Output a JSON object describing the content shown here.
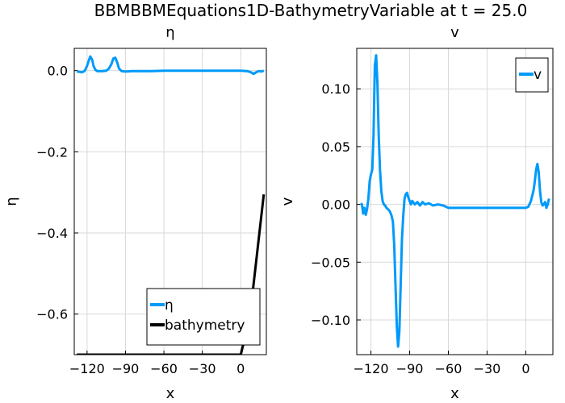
{
  "figure_title": "BBMBBMEquations1D-BathymetryVariable at t = 25.0",
  "colors": {
    "eta": "#009af9",
    "v": "#009af9",
    "bathymetry": "#000000",
    "grid": "#d9d9d9"
  },
  "chart_data": [
    {
      "type": "line",
      "title": "η",
      "xlabel": "x",
      "ylabel": "η",
      "xlim": [
        -130,
        20
      ],
      "ylim": [
        -0.7,
        0.055
      ],
      "xticks": [
        -120,
        -90,
        -60,
        -30,
        0
      ],
      "yticks": [
        0.0,
        -0.2,
        -0.4,
        -0.6
      ],
      "xtick_labels": [
        "−120",
        "−90",
        "−60",
        "−30",
        "0"
      ],
      "ytick_labels": [
        "0.0",
        "−0.2",
        "−0.4",
        "−0.6"
      ],
      "grid": true,
      "legend": "bottom-right",
      "series": [
        {
          "name": "η",
          "x": [
            -128,
            -124,
            -122,
            -121,
            -120,
            -119,
            -117.5,
            -116,
            -115,
            -113.5,
            -112,
            -110,
            -108,
            -105,
            -103,
            -101,
            -99.5,
            -98,
            -96.5,
            -95,
            -93,
            -90,
            -85,
            -80,
            -70,
            -60,
            -40,
            -20,
            0,
            5,
            8,
            10,
            12,
            14,
            16,
            18
          ],
          "y": [
            -0.002,
            -0.004,
            -0.001,
            0.005,
            0.012,
            0.022,
            0.035,
            0.027,
            0.012,
            0.002,
            -0.001,
            -0.001,
            -0.001,
            0.0,
            0.005,
            0.016,
            0.03,
            0.032,
            0.02,
            0.005,
            -0.001,
            -0.002,
            -0.001,
            -0.001,
            -0.001,
            0.0,
            0.0,
            0.0,
            0.0,
            -0.001,
            -0.004,
            -0.008,
            -0.004,
            -0.001,
            -0.002,
            0.0
          ]
        },
        {
          "name": "bathymetry",
          "x": [
            -128,
            -60,
            0,
            7,
            18
          ],
          "y": [
            -0.7,
            -0.7,
            -0.7,
            -0.61,
            -0.305
          ]
        }
      ]
    },
    {
      "type": "line",
      "title": "v",
      "xlabel": "x",
      "ylabel": "v",
      "xlim": [
        -131,
        21
      ],
      "ylim": [
        -0.13,
        0.135
      ],
      "xticks": [
        -120,
        -90,
        -60,
        -30,
        0
      ],
      "yticks": [
        0.1,
        0.05,
        0.0,
        -0.05,
        -0.1
      ],
      "xtick_labels": [
        "−120",
        "−90",
        "−60",
        "−30",
        "0"
      ],
      "ytick_labels": [
        "0.10",
        "0.05",
        "0.00",
        "−0.05",
        "−0.10"
      ],
      "grid": true,
      "legend": "top-right",
      "series": [
        {
          "name": "v",
          "x": [
            -128,
            -127,
            -126,
            -125,
            -124,
            -123,
            -122,
            -121,
            -120,
            -119,
            -118,
            -117,
            -116,
            -115,
            -114,
            -113,
            -112,
            -111,
            -110,
            -109,
            -108,
            -107,
            -106,
            -105,
            -104,
            -103,
            -102,
            -101,
            -100,
            -99,
            -98,
            -97,
            -96,
            -95,
            -94,
            -93,
            -92,
            -91,
            -90,
            -89,
            -88,
            -86,
            -84,
            -82,
            -80,
            -78,
            -75,
            -72,
            -68,
            -64,
            -60,
            -50,
            -40,
            -30,
            -20,
            -15,
            -10,
            -5,
            -2,
            0,
            2,
            4,
            6,
            7,
            8,
            9,
            10,
            11,
            12,
            13,
            14,
            15,
            16,
            17,
            18
          ],
          "y": [
            0.001,
            0.0,
            -0.008,
            -0.003,
            -0.009,
            -0.004,
            0.005,
            0.02,
            0.026,
            0.03,
            0.06,
            0.12,
            0.129,
            0.105,
            0.06,
            0.03,
            0.012,
            0.003,
            0.0,
            -0.001,
            -0.003,
            -0.004,
            -0.005,
            -0.007,
            -0.01,
            -0.015,
            -0.035,
            -0.07,
            -0.105,
            -0.123,
            -0.11,
            -0.07,
            -0.03,
            -0.01,
            0.005,
            0.009,
            0.01,
            0.006,
            0.003,
            0.0,
            0.003,
            0.0,
            0.002,
            -0.001,
            0.002,
            0.0,
            0.001,
            -0.001,
            0.0,
            -0.001,
            -0.003,
            -0.003,
            -0.003,
            -0.003,
            -0.003,
            -0.003,
            -0.003,
            -0.003,
            -0.003,
            -0.003,
            -0.002,
            0.003,
            0.012,
            0.02,
            0.03,
            0.035,
            0.028,
            0.012,
            0.002,
            -0.001,
            0.0,
            0.002,
            -0.003,
            0.0,
            0.005
          ]
        }
      ]
    }
  ]
}
